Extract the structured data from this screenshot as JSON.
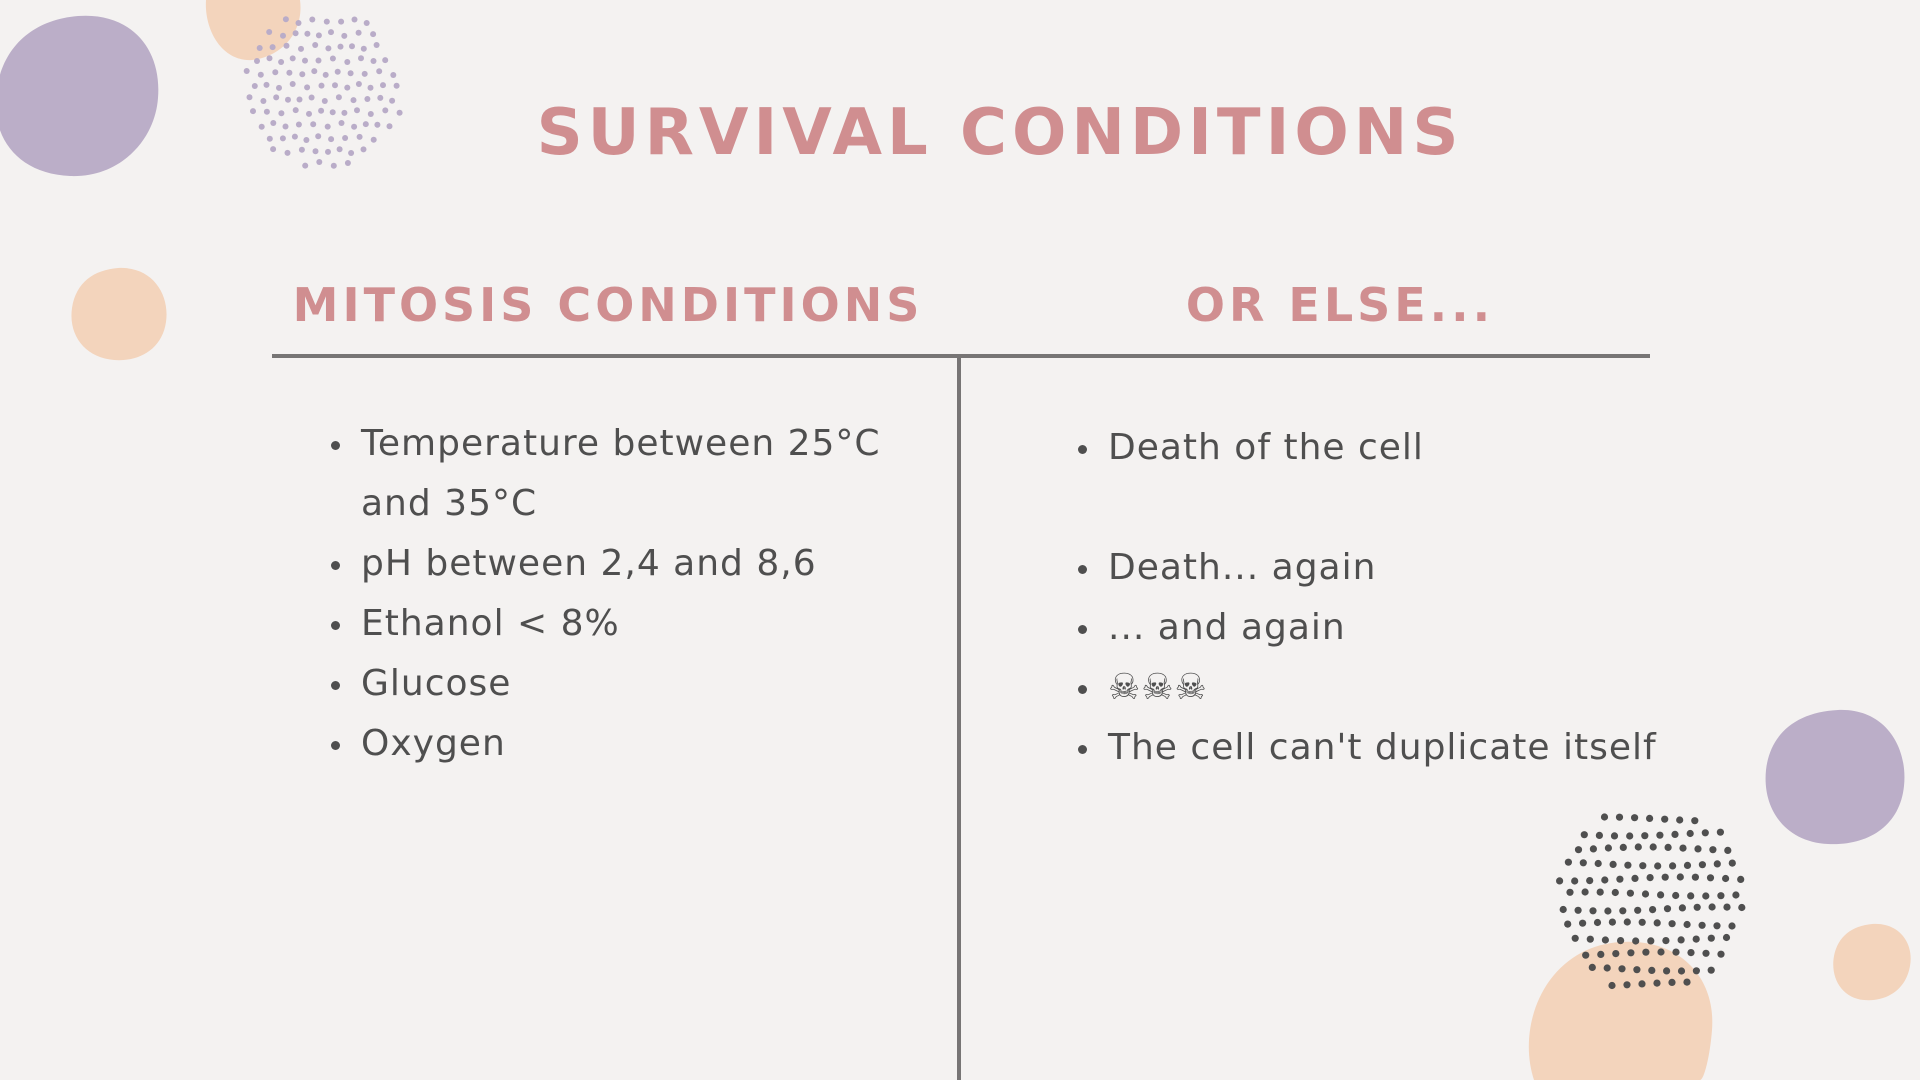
{
  "slide": {
    "title": "SURVIVAL CONDITIONS",
    "left_column": {
      "heading": "MITOSIS CONDITIONS",
      "items": [
        "Temperature between 25°C and 35°C",
        "pH between 2,4 and 8,6",
        "Ethanol < 8%",
        "Glucose",
        "Oxygen"
      ]
    },
    "right_column": {
      "heading": "OR ELSE...",
      "items": [
        "Death of the cell",
        "Death... again",
        "... and again",
        "☠☠☠",
        "The cell can't duplicate itself"
      ]
    }
  },
  "colors": {
    "background": "#f4f2f1",
    "heading": "#d08e90",
    "body_text": "#4f4f4f",
    "divider": "#777575",
    "blob_purple": "#bbaec8",
    "blob_peach": "#f3d4bc",
    "dots_purple": "#b9acc8",
    "dots_dark": "#4f4f4f"
  },
  "decorations": [
    "purple-blob",
    "peach-blob",
    "dot-cluster"
  ]
}
